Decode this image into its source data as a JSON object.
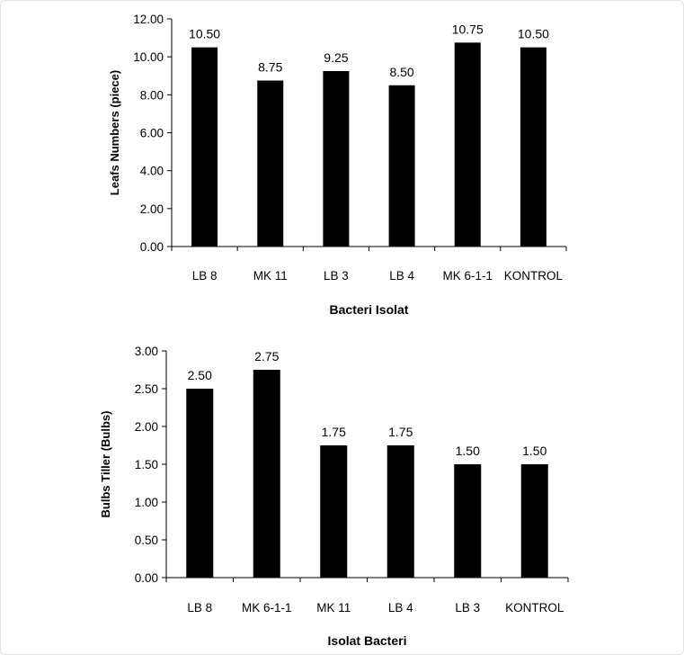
{
  "chart_data": [
    {
      "type": "bar",
      "categories": [
        "LB 8",
        "MK 11",
        "LB 3",
        "LB 4",
        "MK 6-1-1",
        "KONTROL"
      ],
      "values": [
        10.5,
        8.75,
        9.25,
        8.5,
        10.75,
        10.5
      ],
      "value_labels": [
        "10.50",
        "8.75",
        "9.25",
        "8.50",
        "10.75",
        "10.50"
      ],
      "xlabel": "Bacteri Isolat",
      "ylabel": "Leafs Numbers (piece)",
      "ylim": [
        0,
        12
      ],
      "yticks": [
        "0.00",
        "2.00",
        "4.00",
        "6.00",
        "8.00",
        "10.00",
        "12.00"
      ],
      "grid": false,
      "bar_color": "#000000"
    },
    {
      "type": "bar",
      "categories": [
        "LB 8",
        "MK 6-1-1",
        "MK 11",
        "LB 4",
        "LB 3",
        "KONTROL"
      ],
      "values": [
        2.5,
        2.75,
        1.75,
        1.75,
        1.5,
        1.5
      ],
      "value_labels": [
        "2.50",
        "2.75",
        "1.75",
        "1.75",
        "1.50",
        "1.50"
      ],
      "xlabel": "Isolat Bacteri",
      "ylabel": "Bulbs Tiller  (Bulbs)",
      "ylim": [
        0,
        3
      ],
      "yticks": [
        "0.00",
        "0.50",
        "1.00",
        "1.50",
        "2.00",
        "2.50",
        "3.00"
      ],
      "grid": false,
      "bar_color": "#000000"
    }
  ]
}
